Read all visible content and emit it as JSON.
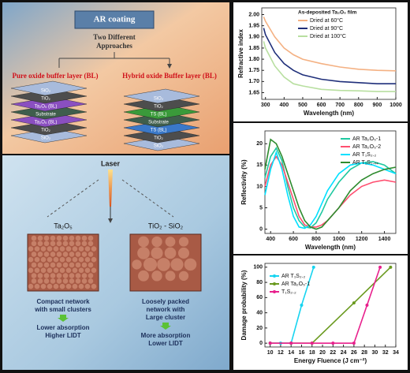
{
  "left_panel": {
    "title": "AR coating",
    "subtitle": [
      "Two Different",
      "Approaches"
    ],
    "approaches": [
      {
        "label": "Pure oxide buffer layer (BL)",
        "layers": [
          "SiO₂",
          "TiO₂",
          "Ta₂O₅ (BL)",
          "Substrate",
          "Ta₂O₅ (BL)",
          "TiO₂",
          "SiO₂"
        ]
      },
      {
        "label": "Hybrid oxide Buffer layer (BL)",
        "layers": [
          "SiO₂",
          "TiO₂",
          "TS (BL)",
          "Substrate",
          "TS (BL)",
          "TiO₂",
          "SiO₂"
        ]
      }
    ],
    "laser": "Laser",
    "materials": [
      {
        "name": "Ta₂O₅",
        "description": [
          "Compact network",
          "with small clusters"
        ],
        "result": [
          "Lower absorption",
          "Higher LIDT"
        ]
      },
      {
        "name": "TiO₂ - SiO₂",
        "description": [
          "Loosely packed",
          "network with",
          "Large cluster"
        ],
        "result": [
          "More absorption",
          "Lower LIDT"
        ]
      }
    ]
  },
  "chart_data": [
    {
      "type": "line",
      "xlabel": "Wavelength (nm)",
      "ylabel": "Refractive index",
      "legend_title": "As-deposited Ta₂O₅ film",
      "xlim": [
        280,
        1000
      ],
      "ylim": [
        1.62,
        2.03
      ],
      "xticks": [
        300,
        400,
        500,
        600,
        700,
        800,
        900,
        1000
      ],
      "yticks": [
        {
          "value": 1.65,
          "label": "1.65"
        },
        {
          "value": 1.7,
          "label": "1.70"
        },
        {
          "value": 1.75,
          "label": "1.75"
        },
        {
          "value": 1.8,
          "label": "1.80"
        },
        {
          "value": 1.85,
          "label": "1.85"
        },
        {
          "value": 1.9,
          "label": "1.90"
        },
        {
          "value": 1.95,
          "label": "1.95"
        },
        {
          "value": 2,
          "label": "2.00"
        }
      ],
      "series": [
        {
          "name": "Dried at 60°C",
          "color": "#f4b183",
          "x": [
            290,
            300,
            350,
            400,
            450,
            500,
            600,
            700,
            800,
            900,
            1000
          ],
          "values": [
            1.99,
            1.97,
            1.9,
            1.85,
            1.82,
            1.8,
            1.78,
            1.765,
            1.755,
            1.75,
            1.748
          ]
        },
        {
          "name": "Dried at 90°C",
          "color": "#1f2f7a",
          "x": [
            290,
            300,
            350,
            400,
            450,
            500,
            600,
            700,
            800,
            900,
            1000
          ],
          "values": [
            1.94,
            1.91,
            1.83,
            1.78,
            1.75,
            1.73,
            1.71,
            1.7,
            1.695,
            1.69,
            1.69
          ]
        },
        {
          "name": "Dried at 100°C",
          "color": "#b8dfa0",
          "x": [
            290,
            300,
            350,
            400,
            450,
            500,
            600,
            700,
            800,
            900,
            1000
          ],
          "values": [
            1.88,
            1.85,
            1.77,
            1.72,
            1.69,
            1.68,
            1.665,
            1.66,
            1.658,
            1.655,
            1.655
          ]
        }
      ]
    },
    {
      "type": "line",
      "xlabel": "Wavelength (nm)",
      "ylabel": "Reflectivity (%)",
      "xlim": [
        350,
        1500
      ],
      "ylim": [
        -1,
        23
      ],
      "xticks": [
        400,
        600,
        800,
        1000,
        1200,
        1400
      ],
      "yticks": [
        0,
        5,
        10,
        15,
        20
      ],
      "series": [
        {
          "name": "AR Ta₂O₅-1",
          "color": "#1fc8a0",
          "x": [
            350,
            400,
            450,
            500,
            550,
            600,
            650,
            700,
            750,
            800,
            850,
            900,
            1000,
            1100,
            1200,
            1300,
            1400,
            1500
          ],
          "values": [
            12,
            17,
            19,
            16,
            10,
            5,
            2,
            0.5,
            0.3,
            1.5,
            4,
            7,
            11,
            14,
            15.5,
            15.8,
            15,
            13
          ]
        },
        {
          "name": "AR Ta₂O₅-2",
          "color": "#ff4f70",
          "x": [
            350,
            400,
            450,
            500,
            550,
            600,
            650,
            700,
            750,
            800,
            850,
            900,
            1000,
            1100,
            1200,
            1300,
            1400,
            1500
          ],
          "values": [
            10,
            15,
            17,
            15,
            11,
            7,
            3,
            1,
            0.5,
            0.5,
            1,
            2,
            5,
            8,
            10,
            11,
            11.5,
            11
          ]
        },
        {
          "name": "AR T₁S₂.₂",
          "color": "#00e0ff",
          "x": [
            350,
            400,
            450,
            500,
            550,
            600,
            650,
            700,
            750,
            800,
            850,
            900,
            1000,
            1100,
            1200,
            1300,
            1400,
            1500
          ],
          "values": [
            8,
            14,
            18,
            14,
            8,
            3,
            0.5,
            0.2,
            1,
            3,
            6,
            9,
            13,
            15,
            15.5,
            15,
            14,
            13
          ]
        },
        {
          "name": "AR T₁S₁.₄₄",
          "color": "#2e8b2e",
          "x": [
            350,
            400,
            450,
            500,
            550,
            600,
            650,
            700,
            750,
            800,
            850,
            900,
            1000,
            1100,
            1200,
            1300,
            1400,
            1500
          ],
          "values": [
            14,
            21,
            20,
            17,
            13,
            9,
            5,
            2,
            0.5,
            0,
            0.5,
            2,
            5,
            9,
            11.5,
            13,
            14,
            14.5
          ]
        }
      ]
    },
    {
      "type": "line",
      "markers": true,
      "xlabel": "Energy Fluence (J cm⁻²)",
      "ylabel": "Damage probability (%)",
      "xlim": [
        9,
        34
      ],
      "ylim": [
        -5,
        105
      ],
      "xticks": [
        10,
        12,
        14,
        16,
        18,
        20,
        22,
        24,
        26,
        28,
        30,
        32,
        34
      ],
      "yticks": [
        0,
        20,
        40,
        60,
        80,
        100
      ],
      "series": [
        {
          "name": "AR T₁S₂.₂",
          "color": "#17d4f0",
          "x": [
            10,
            12,
            14,
            16,
            18.3
          ],
          "values": [
            0,
            0,
            0,
            50,
            100
          ]
        },
        {
          "name": "AR Ta₂O₅-1",
          "color": "#6a9a1f",
          "x": [
            10,
            14,
            18,
            26,
            33
          ],
          "values": [
            0,
            0,
            0,
            53,
            100
          ]
        },
        {
          "name": "T₁S₂.₂",
          "color": "#e8208c",
          "x": [
            10,
            14,
            18,
            22,
            26,
            28.5,
            31
          ],
          "values": [
            0,
            0,
            0,
            0,
            0,
            50,
            100
          ]
        }
      ]
    }
  ]
}
